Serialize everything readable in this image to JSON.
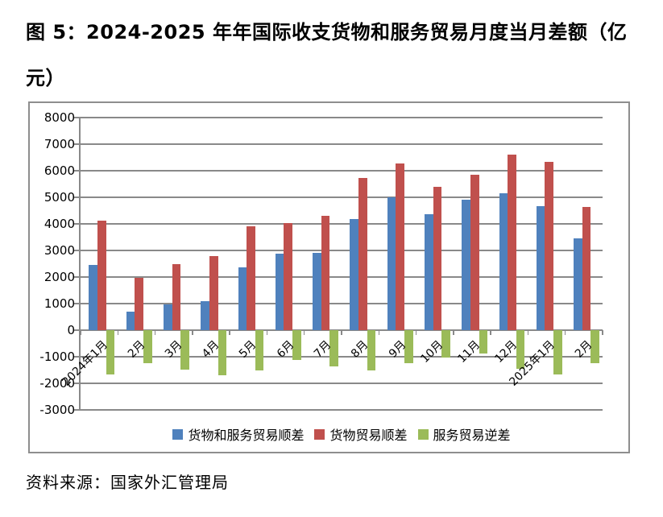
{
  "figure": {
    "title_line1": "图 5：2024-2025 年年国际收支货物和服务贸易月度当月差额（亿",
    "title_line2": "元）",
    "source": "资料来源：国家外汇管理局"
  },
  "chart_data": {
    "type": "bar",
    "title": "图 5：2024-2025 年年国际收支货物和服务贸易月度当月差额（亿元）",
    "xlabel": "",
    "ylabel": "",
    "categories": [
      "2024年1月",
      "2月",
      "3月",
      "4月",
      "5月",
      "6月",
      "7月",
      "8月",
      "9月",
      "10月",
      "11月",
      "12月",
      "2025年1月",
      "2月"
    ],
    "series": [
      {
        "name": "货物和服务贸易顺差",
        "key": "goods-and-services-balance",
        "color": "#4F81BD",
        "values": [
          2450,
          700,
          960,
          1100,
          2370,
          2890,
          2920,
          4180,
          5010,
          4350,
          4920,
          5140,
          4680,
          3460
        ]
      },
      {
        "name": "货物贸易顺差",
        "key": "goods-balance",
        "color": "#C0504D",
        "values": [
          4120,
          1970,
          2500,
          2800,
          3900,
          4030,
          4290,
          5720,
          6270,
          5390,
          5840,
          6600,
          6330,
          4640
        ]
      },
      {
        "name": "服务贸易逆差",
        "key": "services-balance",
        "color": "#9BBB59",
        "values": [
          -1660,
          -1230,
          -1480,
          -1700,
          -1520,
          -1110,
          -1360,
          -1530,
          -1240,
          -1020,
          -880,
          -1460,
          -1660,
          -1230
        ]
      }
    ],
    "ylim": [
      -3000,
      8000
    ],
    "ytick_step": 1000,
    "grid": true,
    "legend_position": "bottom"
  },
  "colors": {
    "gridline": "#898989",
    "chart_border": "#8e8e8e",
    "text": "#000000"
  }
}
